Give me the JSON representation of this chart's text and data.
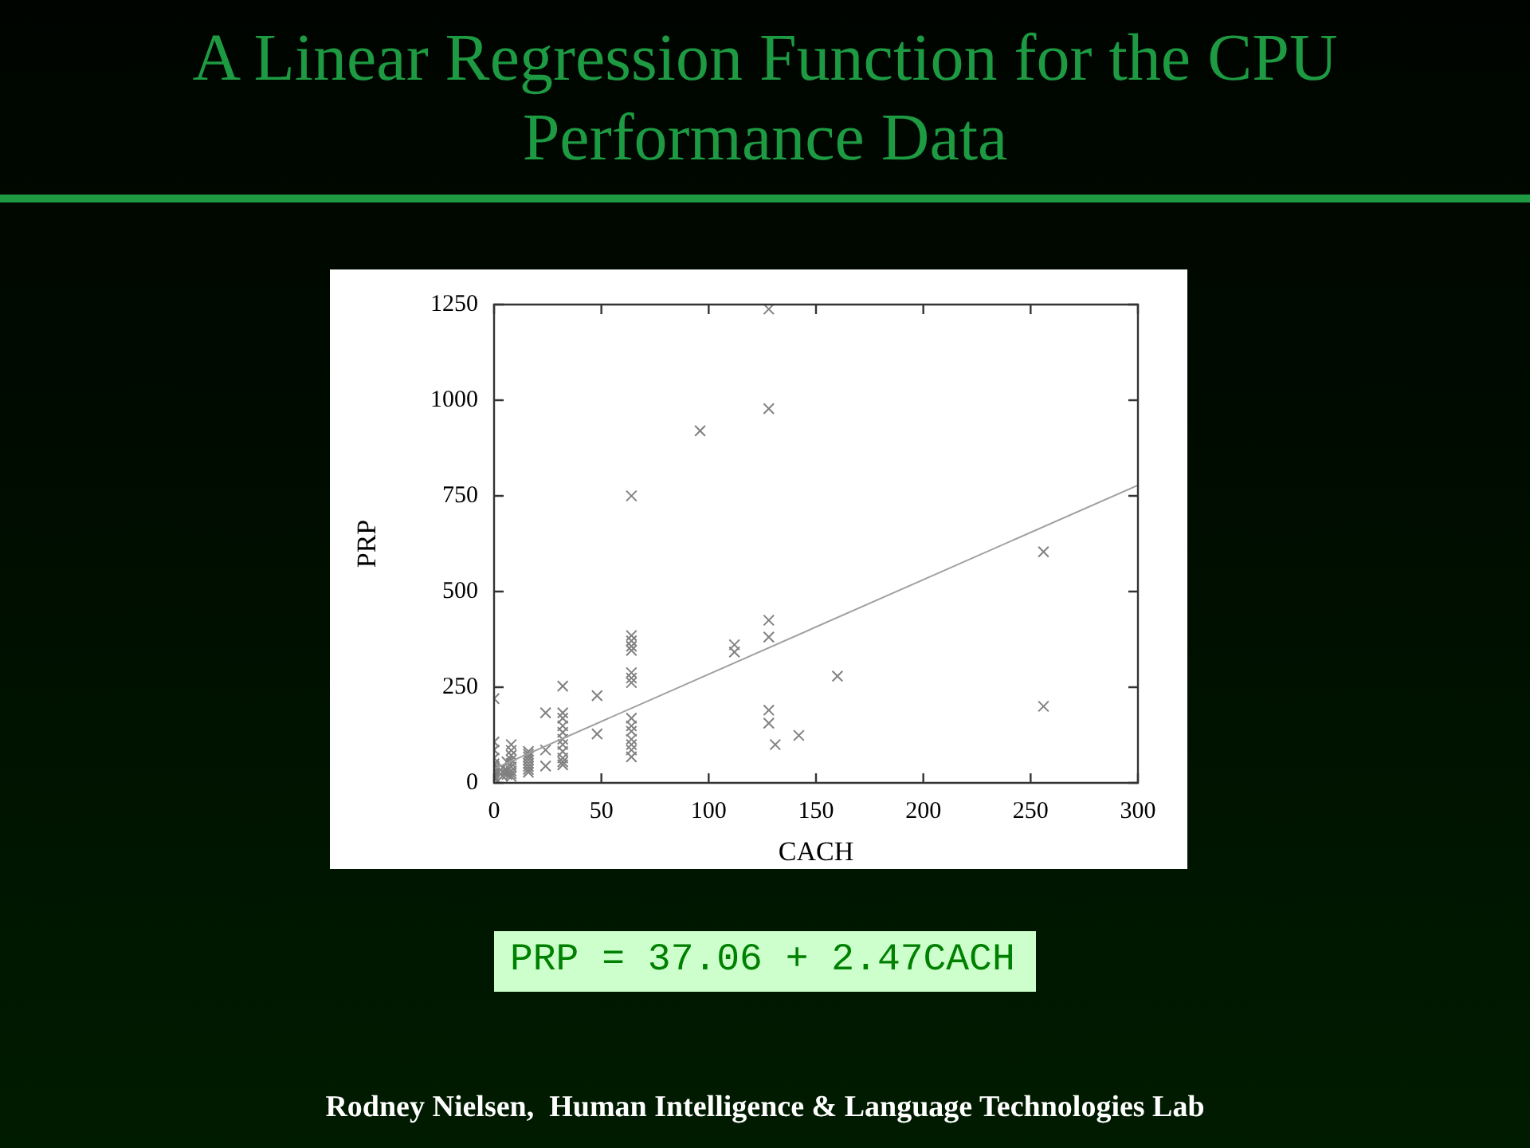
{
  "chart_data": {
    "type": "scatter",
    "title": "A Linear Regression Function for the CPU Performance Data",
    "xlabel": "CACH",
    "ylabel": "PRP",
    "xlim": [
      0,
      300
    ],
    "xticks": [
      0,
      50,
      100,
      150,
      200,
      250,
      300
    ],
    "ylim": [
      0,
      1250
    ],
    "yticks": [
      0,
      250,
      500,
      750,
      1000,
      1250
    ],
    "grid": false,
    "legend": false,
    "marker": "cross",
    "annotations": [
      "PRP = 37.06 + 2.47CACH",
      "Rodney Nielsen,  Human Intelligence & Language Technologies Lab"
    ],
    "series": [
      {
        "color": "#808080",
        "x": [
          0,
          0,
          0,
          0,
          0,
          0,
          0,
          0,
          0,
          0,
          0,
          0,
          4,
          4,
          4,
          6,
          6,
          6,
          8,
          8,
          8,
          8,
          8,
          8,
          8,
          8,
          8,
          16,
          16,
          16,
          16,
          16,
          16,
          16,
          16,
          24,
          24,
          24,
          32,
          32,
          32,
          32,
          32,
          32,
          32,
          32,
          32,
          32,
          32,
          48,
          48,
          64,
          64,
          64,
          64,
          64,
          64,
          64,
          64,
          64,
          64,
          64,
          64,
          64,
          64,
          64,
          96,
          112,
          112,
          128,
          128,
          128,
          128,
          128,
          128,
          131,
          142,
          160,
          256,
          256
        ],
        "values": [
          220,
          107,
          86,
          65,
          50,
          44,
          36,
          30,
          26,
          20,
          16,
          12,
          40,
          28,
          18,
          55,
          33,
          22,
          100,
          85,
          72,
          60,
          51,
          42,
          31,
          24,
          17,
          82,
          75,
          68,
          60,
          51,
          43,
          35,
          28,
          183,
          86,
          44,
          253,
          183,
          169,
          149,
          132,
          114,
          100,
          82,
          65,
          55,
          47,
          228,
          128,
          750,
          385,
          371,
          357,
          346,
          288,
          274,
          262,
          169,
          149,
          135,
          114,
          100,
          86,
          68,
          920,
          361,
          342,
          1238,
          978,
          425,
          381,
          190,
          156,
          100,
          124,
          279,
          604,
          200
        ]
      },
      {
        "type": "line",
        "color": "#a0a0a0",
        "marker": "none",
        "line_style": "solid",
        "x": [
          0,
          300
        ],
        "values": [
          37,
          778
        ]
      }
    ]
  }
}
